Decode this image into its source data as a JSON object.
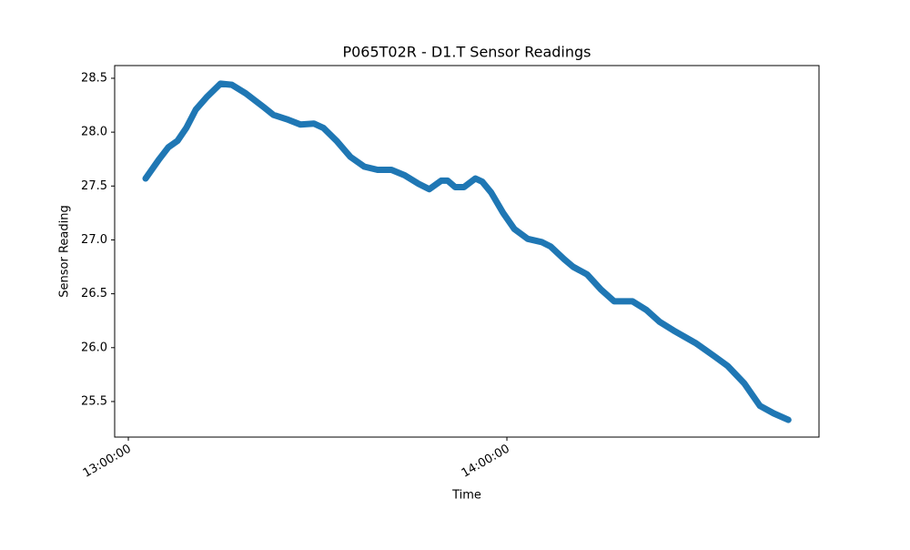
{
  "chart_data": {
    "type": "line",
    "title": "P065T02R - D1.T Sensor Readings",
    "x_label": "Time",
    "y_label": "Sensor Reading",
    "x": [
      "13:02:44",
      "13:04:54",
      "13:06:21",
      "13:07:48",
      "13:09:12",
      "13:10:42",
      "13:12:30",
      "13:14:36",
      "13:16:24",
      "13:18:36",
      "13:21:30",
      "13:23:00",
      "13:25:06",
      "13:27:18",
      "13:29:24",
      "13:30:54",
      "13:33:00",
      "13:35:12",
      "13:37:24",
      "13:39:30",
      "13:41:42",
      "13:43:48",
      "13:46:00",
      "13:47:42",
      "13:49:36",
      "13:50:36",
      "13:51:48",
      "13:53:12",
      "13:55:00",
      "13:56:06",
      "13:57:30",
      "13:59:24",
      "14:01:12",
      "14:03:18",
      "14:05:30",
      "14:06:54",
      "14:09:06",
      "14:10:30",
      "14:12:42",
      "14:14:54",
      "14:17:00",
      "14:19:54",
      "14:22:06",
      "14:24:12",
      "14:26:24",
      "14:30:00",
      "14:32:54",
      "14:35:00",
      "14:37:36",
      "14:40:06",
      "14:42:18",
      "14:44:36"
    ],
    "series": [
      {
        "color": "#1f77b4",
        "values": [
          27.57,
          27.75,
          27.86,
          27.92,
          28.04,
          28.21,
          28.33,
          28.45,
          28.44,
          28.36,
          28.23,
          28.16,
          28.12,
          28.07,
          28.08,
          28.04,
          27.92,
          27.77,
          27.68,
          27.65,
          27.65,
          27.6,
          27.52,
          27.47,
          27.55,
          27.55,
          27.49,
          27.49,
          27.57,
          27.54,
          27.44,
          27.25,
          27.1,
          27.01,
          26.98,
          26.94,
          26.82,
          26.75,
          26.68,
          26.54,
          26.43,
          26.43,
          26.35,
          26.24,
          26.16,
          26.04,
          25.92,
          25.83,
          25.67,
          25.46,
          25.39,
          25.33
        ]
      }
    ],
    "xlim": [
      "12:57:50",
      "14:49:28"
    ],
    "xticks": [
      "13:00:00",
      "14:00:00"
    ],
    "ylim": [
      25.17,
      28.618
    ],
    "yticks": [
      25.5,
      {
        "value": 26,
        "label": "26.0"
      },
      26.5,
      {
        "value": 27,
        "label": "27.0"
      },
      27.5,
      {
        "value": 28,
        "label": "28.0"
      },
      28.5
    ]
  }
}
